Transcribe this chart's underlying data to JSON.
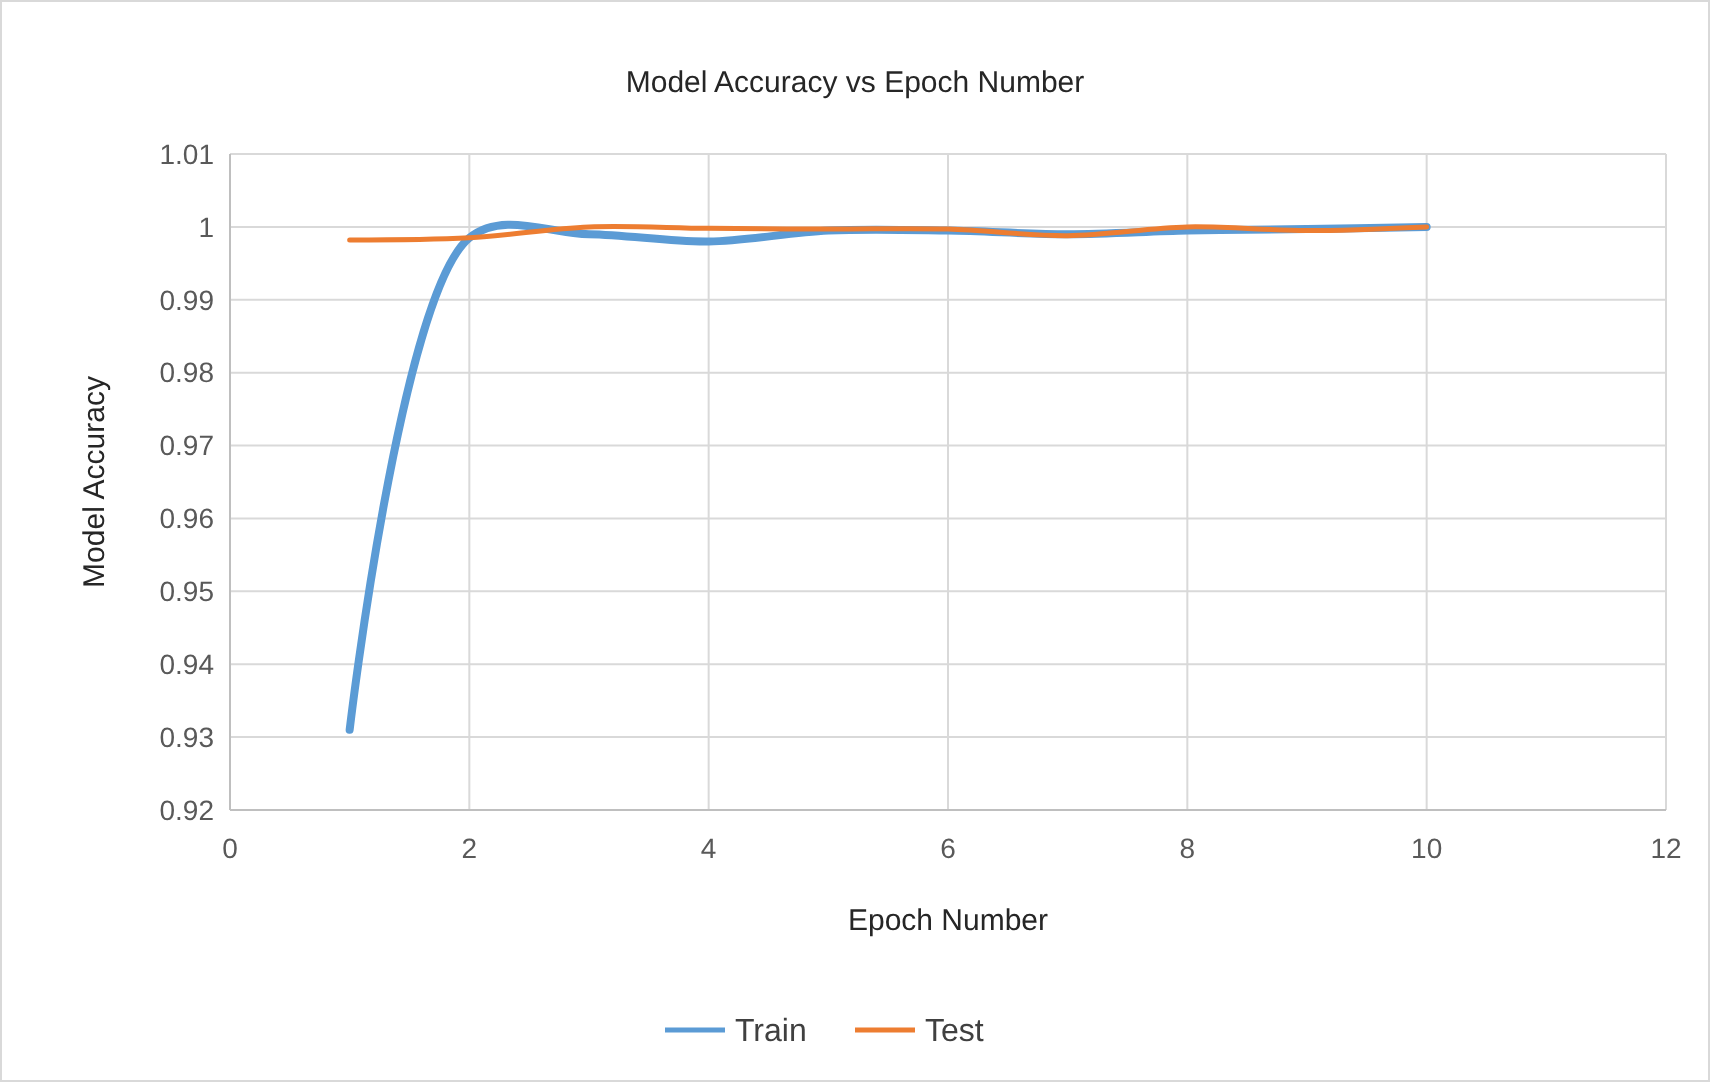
{
  "chart_data": {
    "type": "line",
    "title": "Model Accuracy vs Epoch Number",
    "xlabel": "Epoch Number",
    "ylabel": "Model Accuracy",
    "x": [
      1,
      2,
      3,
      4,
      5,
      6,
      7,
      8,
      9,
      10
    ],
    "series": [
      {
        "name": "Train",
        "color": "#5b9bd5",
        "values": [
          0.931,
          0.9985,
          0.999,
          0.998,
          0.9995,
          0.9995,
          0.999,
          0.9995,
          0.9997,
          1.0
        ]
      },
      {
        "name": "Test",
        "color": "#ed7d31",
        "values": [
          0.9982,
          0.9985,
          1.0,
          0.9998,
          0.9997,
          0.9997,
          0.9988,
          1.0,
          0.9995,
          1.0
        ]
      }
    ],
    "xlim": [
      0,
      12
    ],
    "xticks": [
      0,
      2,
      4,
      6,
      8,
      10,
      12
    ],
    "ylim": [
      0.92,
      1.01
    ],
    "yticks": [
      0.92,
      0.93,
      0.94,
      0.95,
      0.96,
      0.97,
      0.98,
      0.99,
      1,
      1.01
    ],
    "grid": true,
    "legend": "bottom",
    "marker": "none",
    "line_style": "solid"
  }
}
